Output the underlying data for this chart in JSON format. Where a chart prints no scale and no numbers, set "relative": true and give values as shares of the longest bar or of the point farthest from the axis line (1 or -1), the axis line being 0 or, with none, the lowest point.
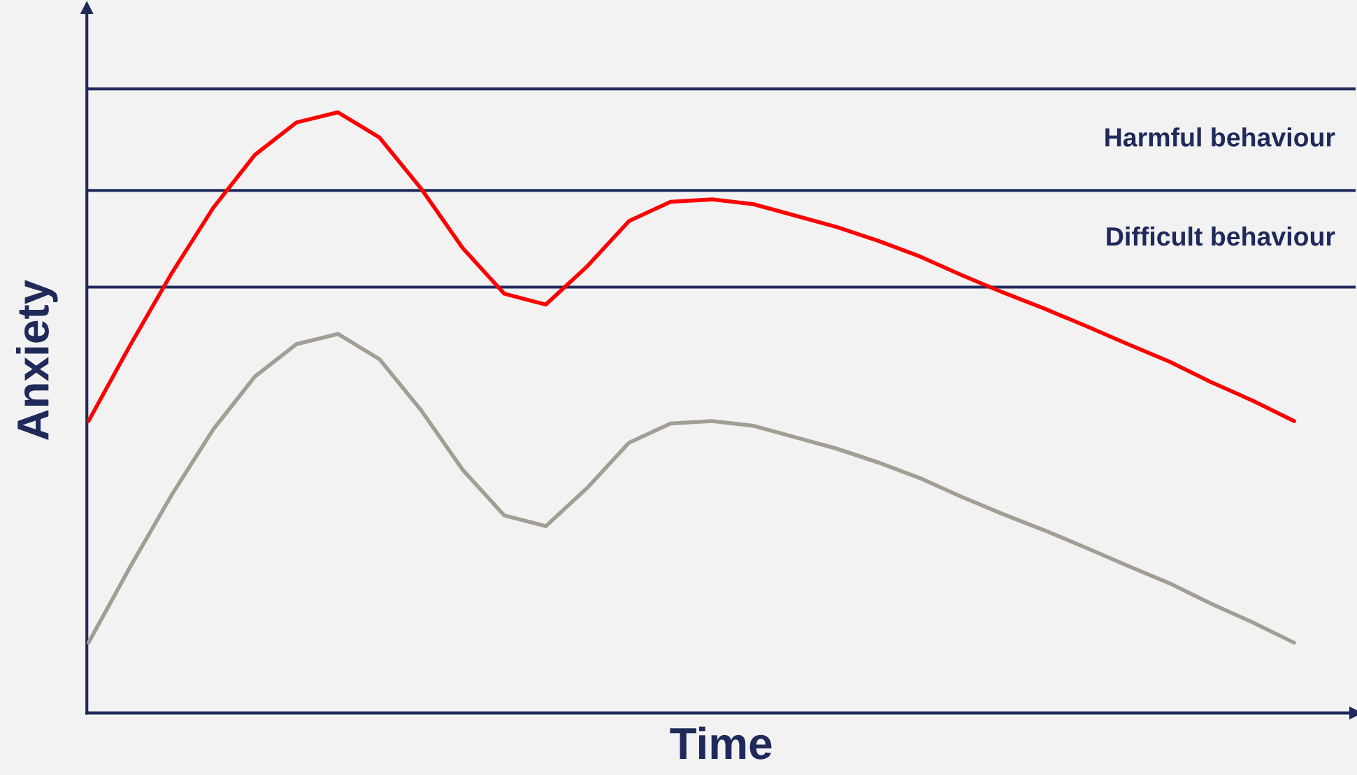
{
  "chart_data": {
    "type": "line",
    "relative": true,
    "xlabel": "Time",
    "ylabel": "Anxiety",
    "tick_labels": false,
    "legend": false,
    "marker": "none",
    "line_style": "solid",
    "categories": [
      null,
      null,
      null,
      null,
      null,
      null,
      null,
      null,
      null,
      null,
      null,
      null,
      null,
      null,
      null,
      null,
      null,
      null,
      null,
      null,
      null,
      null,
      null,
      null,
      null,
      null,
      null,
      null,
      null,
      null
    ],
    "series": [
      {
        "color": "#ff0000",
        "values": [
          0.486,
          0.612,
          0.732,
          0.841,
          0.929,
          0.983,
          1.0,
          0.958,
          0.873,
          0.774,
          0.698,
          0.68,
          0.744,
          0.819,
          0.851,
          0.855,
          0.847,
          0.828,
          0.809,
          0.786,
          0.76,
          0.729,
          0.7,
          0.673,
          0.644,
          0.614,
          0.585,
          0.551,
          0.52,
          0.486
        ]
      },
      {
        "color": "#a39e93",
        "values": [
          0.117,
          0.243,
          0.363,
          0.472,
          0.56,
          0.614,
          0.631,
          0.589,
          0.504,
          0.405,
          0.329,
          0.311,
          0.375,
          0.45,
          0.482,
          0.486,
          0.478,
          0.459,
          0.44,
          0.417,
          0.391,
          0.36,
          0.331,
          0.304,
          0.275,
          0.245,
          0.216,
          0.182,
          0.151,
          0.117
        ]
      }
    ],
    "ref_lines": [
      {
        "axis": "y",
        "value": 1.039,
        "color": "#1f2a5a"
      },
      {
        "axis": "y",
        "value": 0.87,
        "color": "#1f2a5a"
      },
      {
        "axis": "y",
        "value": 0.709,
        "color": "#1f2a5a"
      }
    ],
    "annotations": [
      "Harmful behaviour",
      "Difficult behaviour"
    ]
  }
}
